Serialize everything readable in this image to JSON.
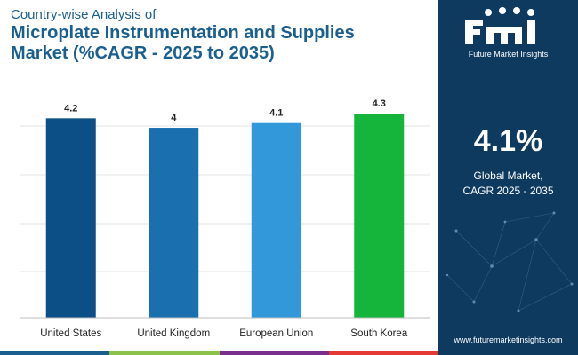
{
  "header": {
    "subtitle": "Country-wise Analysis of",
    "title_line1": "Microplate Instrumentation and Supplies",
    "title_line2": "Market (%CAGR - 2025 to 2035)"
  },
  "chart_data": {
    "type": "bar",
    "categories": [
      "United States",
      "United Kingdom",
      "European Union",
      "South Korea"
    ],
    "values": [
      4.2,
      4,
      4.1,
      4.3
    ],
    "value_labels": [
      "4.2",
      "4",
      "4.1",
      "4.3"
    ],
    "bar_colors": [
      "#0b4f86",
      "#1a6fae",
      "#3398da",
      "#14b53a"
    ],
    "ylim": [
      0,
      4.3
    ],
    "grid": true
  },
  "sidebar": {
    "brand_name": "Future Market Insights",
    "stat_value": "4.1%",
    "stat_label_line1": "Global Market,",
    "stat_label_line2": "CAGR 2025 - 2035",
    "website": "www.futuremarketinsights.com"
  },
  "colors": {
    "title": "#1a5f8f",
    "panel": "#0e3a60",
    "strip": [
      "#1a5f8f",
      "#8bc34a",
      "#7a2e8e",
      "#e53935"
    ]
  }
}
